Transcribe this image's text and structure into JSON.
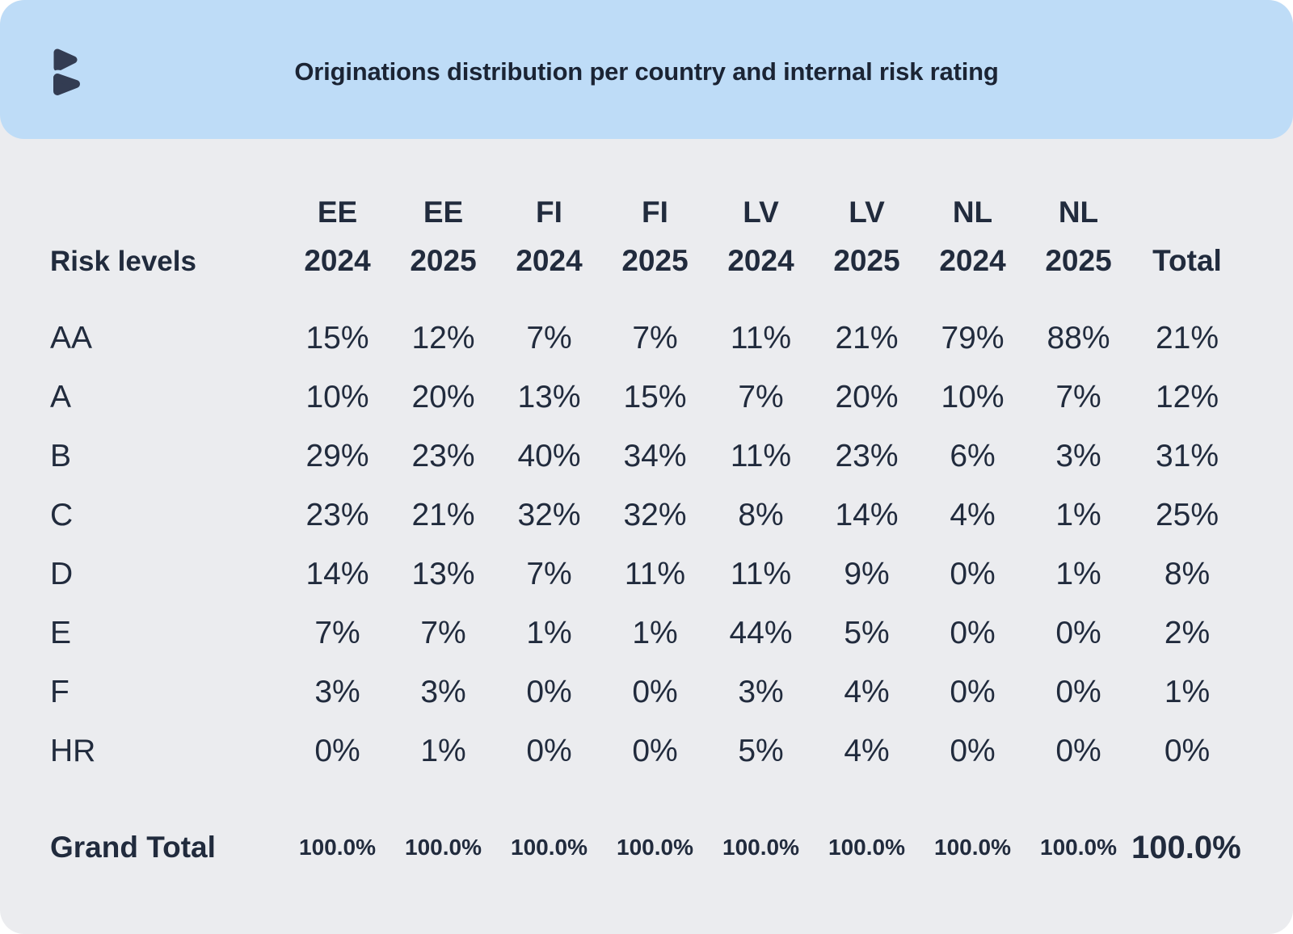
{
  "header": {
    "logo_name": "bondora-logo",
    "background_color": "#BEDCF7"
  },
  "colors": {
    "card_background": "#EBECEF",
    "header_background": "#BEDCF7",
    "text": "#212B3D"
  },
  "chart_data": {
    "type": "table",
    "title": "Originations distribution per country and internal risk rating",
    "row_header_label": "Risk levels",
    "total_label": "Total",
    "columns": [
      {
        "country": "EE",
        "year": "2024"
      },
      {
        "country": "EE",
        "year": "2025"
      },
      {
        "country": "FI",
        "year": "2024"
      },
      {
        "country": "FI",
        "year": "2025"
      },
      {
        "country": "LV",
        "year": "2024"
      },
      {
        "country": "LV",
        "year": "2025"
      },
      {
        "country": "NL",
        "year": "2024"
      },
      {
        "country": "NL",
        "year": "2025"
      }
    ],
    "rows": [
      {
        "label": "AA",
        "values": [
          "15%",
          "12%",
          "7%",
          "7%",
          "11%",
          "21%",
          "79%",
          "88%"
        ],
        "total": "21%"
      },
      {
        "label": "A",
        "values": [
          "10%",
          "20%",
          "13%",
          "15%",
          "7%",
          "20%",
          "10%",
          "7%"
        ],
        "total": "12%"
      },
      {
        "label": "B",
        "values": [
          "29%",
          "23%",
          "40%",
          "34%",
          "11%",
          "23%",
          "6%",
          "3%"
        ],
        "total": "31%"
      },
      {
        "label": "C",
        "values": [
          "23%",
          "21%",
          "32%",
          "32%",
          "8%",
          "14%",
          "4%",
          "1%"
        ],
        "total": "25%"
      },
      {
        "label": "D",
        "values": [
          "14%",
          "13%",
          "7%",
          "11%",
          "11%",
          "9%",
          "0%",
          "1%"
        ],
        "total": "8%"
      },
      {
        "label": "E",
        "values": [
          "7%",
          "7%",
          "1%",
          "1%",
          "44%",
          "5%",
          "0%",
          "0%"
        ],
        "total": "2%"
      },
      {
        "label": "F",
        "values": [
          "3%",
          "3%",
          "0%",
          "0%",
          "3%",
          "4%",
          "0%",
          "0%"
        ],
        "total": "1%"
      },
      {
        "label": "HR",
        "values": [
          "0%",
          "1%",
          "0%",
          "0%",
          "5%",
          "4%",
          "0%",
          "0%"
        ],
        "total": "0%"
      }
    ],
    "grand_total": {
      "label": "Grand Total",
      "values": [
        "100.0%",
        "100.0%",
        "100.0%",
        "100.0%",
        "100.0%",
        "100.0%",
        "100.0%",
        "100.0%"
      ],
      "total": "100.0%"
    }
  }
}
